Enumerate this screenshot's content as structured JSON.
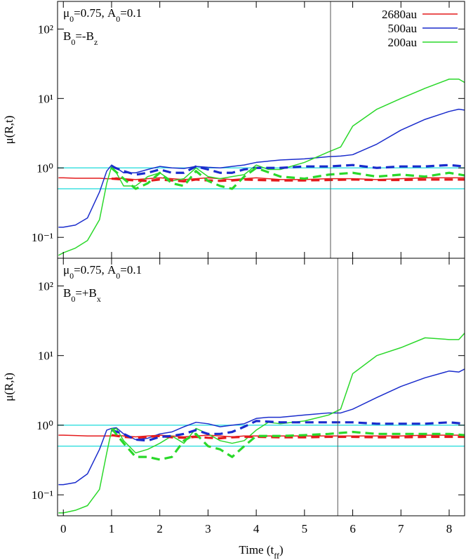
{
  "chart_data": [
    {
      "type": "line",
      "log_y": true,
      "ylabel": "μ(R,t)",
      "annotations": [
        {
          "parts": [
            "μ",
            "0",
            "=0.75, A",
            "0",
            "=0.1"
          ]
        },
        {
          "parts": [
            "B",
            "0",
            "=-B",
            "z"
          ]
        }
      ],
      "legend": "upper right",
      "show_xtick_labels": false,
      "xlim": [
        -0.12,
        8.32
      ],
      "xticks": [
        0,
        1,
        2,
        3,
        4,
        5,
        6,
        7,
        8
      ],
      "ylim": [
        0.05,
        250
      ],
      "yticks": [
        {
          "value": 0.1,
          "label": "10⁻¹"
        },
        {
          "value": 1,
          "label": "10⁰"
        },
        {
          "value": 10,
          "label": "10¹"
        },
        {
          "value": 100,
          "label": "10²"
        }
      ],
      "hlines": [
        1,
        0.5
      ],
      "hline_color": "#40e0e0",
      "vline": 5.54,
      "vline_color": "#555555",
      "series": [
        {
          "name": "2680au",
          "color": "#e41a1c",
          "dash": false,
          "x": [
            -0.1,
            0,
            0.25,
            0.5,
            0.75,
            0.9,
            1.0,
            1.1,
            1.25,
            1.5,
            1.75,
            2.0,
            2.25,
            2.5,
            2.75,
            3.0,
            3.25,
            3.5,
            3.75,
            4.0,
            4.25,
            4.5,
            5.0,
            5.5,
            5.75,
            6.0,
            6.5,
            7.0,
            7.5,
            8.0,
            8.2,
            8.32
          ],
          "values": [
            0.72,
            0.72,
            0.71,
            0.71,
            0.71,
            0.7,
            0.7,
            0.72,
            0.7,
            0.68,
            0.7,
            0.72,
            0.7,
            0.68,
            0.7,
            0.72,
            0.7,
            0.68,
            0.7,
            0.72,
            0.7,
            0.68,
            0.68,
            0.7,
            0.7,
            0.7,
            0.68,
            0.7,
            0.72,
            0.72,
            0.72,
            0.72
          ]
        },
        {
          "name": "500au",
          "color": "#1a2ccc",
          "dash": false,
          "x": [
            -0.1,
            0,
            0.25,
            0.5,
            0.75,
            0.9,
            1.0,
            1.1,
            1.25,
            1.5,
            1.75,
            2.0,
            2.25,
            2.5,
            2.75,
            3.0,
            3.25,
            3.5,
            3.75,
            4.0,
            4.25,
            4.5,
            5.0,
            5.5,
            5.75,
            6.0,
            6.5,
            7.0,
            7.5,
            8.0,
            8.2,
            8.32
          ],
          "values": [
            0.14,
            0.14,
            0.15,
            0.19,
            0.45,
            0.9,
            1.1,
            1.0,
            0.85,
            0.85,
            0.95,
            1.05,
            1.0,
            0.98,
            1.05,
            1.02,
            1.0,
            1.05,
            1.1,
            1.2,
            1.25,
            1.3,
            1.35,
            1.45,
            1.48,
            1.55,
            2.2,
            3.5,
            5.0,
            6.5,
            7.0,
            6.8
          ]
        },
        {
          "name": "200au",
          "color": "#2ad82a",
          "dash": false,
          "x": [
            -0.1,
            0,
            0.25,
            0.5,
            0.75,
            0.9,
            1.0,
            1.1,
            1.25,
            1.5,
            1.75,
            2.0,
            2.25,
            2.5,
            2.75,
            3.0,
            3.25,
            3.5,
            3.75,
            4.0,
            4.25,
            4.5,
            5.0,
            5.5,
            5.75,
            6.0,
            6.5,
            7.0,
            7.5,
            8.0,
            8.2,
            8.32
          ],
          "values": [
            0.055,
            0.06,
            0.07,
            0.09,
            0.18,
            0.6,
            1.05,
            0.85,
            0.55,
            0.55,
            0.75,
            0.85,
            0.65,
            0.7,
            1.0,
            0.75,
            0.7,
            0.75,
            0.8,
            1.1,
            0.95,
            0.95,
            1.2,
            1.7,
            2.0,
            4.0,
            7.0,
            10,
            14,
            19,
            19,
            17
          ]
        },
        {
          "color": "#e41a1c",
          "dash": true,
          "x": [
            1.0,
            1.25,
            1.5,
            1.75,
            2.0,
            2.25,
            2.5,
            2.75,
            3.0,
            3.25,
            3.5,
            3.75,
            4.0,
            4.5,
            5.0,
            5.5,
            6.0,
            6.5,
            7.0,
            7.5,
            8.0,
            8.32
          ],
          "values": [
            0.7,
            0.68,
            0.66,
            0.65,
            0.68,
            0.66,
            0.64,
            0.68,
            0.66,
            0.65,
            0.66,
            0.68,
            0.67,
            0.66,
            0.66,
            0.67,
            0.68,
            0.67,
            0.67,
            0.68,
            0.68,
            0.68
          ]
        },
        {
          "color": "#1a2ccc",
          "dash": true,
          "x": [
            1.0,
            1.25,
            1.5,
            1.75,
            2.0,
            2.25,
            2.5,
            2.75,
            3.0,
            3.25,
            3.5,
            3.75,
            4.0,
            4.5,
            5.0,
            5.5,
            6.0,
            6.5,
            7.0,
            7.5,
            8.0,
            8.32
          ],
          "values": [
            1.05,
            0.9,
            0.8,
            0.85,
            0.95,
            0.85,
            0.85,
            1.05,
            0.95,
            0.85,
            0.85,
            0.95,
            1.0,
            1.0,
            1.05,
            1.05,
            1.1,
            1.0,
            1.05,
            1.05,
            1.1,
            1.05
          ]
        },
        {
          "color": "#2ad82a",
          "dash": true,
          "x": [
            1.0,
            1.25,
            1.5,
            1.75,
            2.0,
            2.25,
            2.5,
            2.75,
            3.0,
            3.25,
            3.5,
            3.75,
            4.0,
            4.5,
            5.0,
            5.5,
            6.0,
            6.5,
            7.0,
            7.5,
            8.0,
            8.32
          ],
          "values": [
            1.0,
            0.7,
            0.5,
            0.6,
            0.85,
            0.6,
            0.55,
            0.9,
            0.65,
            0.55,
            0.5,
            0.75,
            1.0,
            0.75,
            0.7,
            0.8,
            0.85,
            0.75,
            0.8,
            0.75,
            0.85,
            0.78
          ]
        }
      ]
    },
    {
      "type": "line",
      "log_y": true,
      "ylabel": "μ(R,t)",
      "annotations": [
        {
          "parts": [
            "μ",
            "0",
            "=0.75, A",
            "0",
            "=0.1"
          ]
        },
        {
          "parts": [
            "B",
            "0",
            "=+B",
            "x"
          ]
        }
      ],
      "show_xtick_labels": true,
      "xlabel": {
        "parts": [
          "Time (t",
          "ff",
          ")"
        ]
      },
      "xlim": [
        -0.12,
        8.32
      ],
      "xticks": [
        0,
        1,
        2,
        3,
        4,
        5,
        6,
        7,
        8
      ],
      "ylim": [
        0.05,
        250
      ],
      "yticks": [
        {
          "value": 0.1,
          "label": "10⁻¹"
        },
        {
          "value": 1,
          "label": "10⁰"
        },
        {
          "value": 10,
          "label": "10¹"
        },
        {
          "value": 100,
          "label": "10²"
        }
      ],
      "hlines": [
        1,
        0.5
      ],
      "hline_color": "#40e0e0",
      "vline": 5.69,
      "vline_color": "#555555",
      "series": [
        {
          "color": "#e41a1c",
          "dash": false,
          "x": [
            -0.1,
            0,
            0.25,
            0.5,
            0.75,
            0.9,
            1.0,
            1.1,
            1.25,
            1.5,
            1.75,
            2.0,
            2.25,
            2.5,
            2.75,
            3.0,
            3.25,
            3.5,
            3.75,
            4.0,
            4.25,
            4.5,
            5.0,
            5.5,
            5.75,
            6.0,
            6.5,
            7.0,
            7.5,
            8.0,
            8.2,
            8.32
          ],
          "values": [
            0.72,
            0.72,
            0.71,
            0.7,
            0.7,
            0.7,
            0.7,
            0.72,
            0.7,
            0.68,
            0.7,
            0.72,
            0.7,
            0.68,
            0.7,
            0.72,
            0.7,
            0.68,
            0.7,
            0.7,
            0.7,
            0.7,
            0.7,
            0.7,
            0.7,
            0.7,
            0.7,
            0.7,
            0.72,
            0.72,
            0.72,
            0.72
          ]
        },
        {
          "color": "#1a2ccc",
          "dash": false,
          "x": [
            -0.1,
            0,
            0.25,
            0.5,
            0.75,
            0.9,
            1.0,
            1.1,
            1.25,
            1.5,
            1.75,
            2.0,
            2.25,
            2.5,
            2.75,
            3.0,
            3.25,
            3.5,
            3.75,
            4.0,
            4.25,
            4.5,
            5.0,
            5.5,
            5.75,
            6.0,
            6.5,
            7.0,
            7.5,
            8.0,
            8.2,
            8.32
          ],
          "values": [
            0.14,
            0.14,
            0.15,
            0.2,
            0.45,
            0.85,
            0.9,
            0.92,
            0.75,
            0.62,
            0.65,
            0.75,
            0.8,
            0.95,
            1.1,
            1.05,
            0.95,
            1.0,
            1.05,
            1.25,
            1.3,
            1.3,
            1.4,
            1.5,
            1.5,
            1.7,
            2.5,
            3.6,
            4.8,
            6.0,
            5.8,
            6.4
          ]
        },
        {
          "color": "#2ad82a",
          "dash": false,
          "x": [
            -0.1,
            0,
            0.25,
            0.5,
            0.75,
            0.9,
            1.0,
            1.1,
            1.25,
            1.5,
            1.75,
            2.0,
            2.25,
            2.5,
            2.75,
            3.0,
            3.25,
            3.5,
            3.75,
            4.0,
            4.25,
            4.5,
            5.0,
            5.5,
            5.75,
            6.0,
            6.5,
            7.0,
            7.5,
            8.0,
            8.2,
            8.32
          ],
          "values": [
            0.055,
            0.055,
            0.06,
            0.07,
            0.12,
            0.4,
            0.85,
            0.9,
            0.6,
            0.4,
            0.45,
            0.55,
            0.7,
            0.55,
            0.9,
            0.75,
            0.6,
            0.55,
            0.6,
            0.85,
            1.1,
            1.05,
            1.15,
            1.4,
            1.7,
            5.5,
            10,
            13,
            18,
            17,
            17,
            21
          ]
        },
        {
          "color": "#e41a1c",
          "dash": true,
          "x": [
            1.0,
            1.25,
            1.5,
            1.75,
            2.0,
            2.25,
            2.5,
            2.75,
            3.0,
            3.25,
            3.5,
            3.75,
            4.0,
            4.5,
            5.0,
            5.5,
            6.0,
            6.5,
            7.0,
            7.5,
            8.0,
            8.32
          ],
          "values": [
            0.72,
            0.68,
            0.66,
            0.68,
            0.7,
            0.67,
            0.66,
            0.68,
            0.66,
            0.65,
            0.67,
            0.68,
            0.68,
            0.67,
            0.67,
            0.68,
            0.68,
            0.67,
            0.67,
            0.68,
            0.68,
            0.68
          ]
        },
        {
          "color": "#1a2ccc",
          "dash": true,
          "x": [
            1.0,
            1.25,
            1.5,
            1.75,
            2.0,
            2.25,
            2.5,
            2.75,
            3.0,
            3.25,
            3.5,
            3.75,
            4.0,
            4.5,
            5.0,
            5.5,
            6.0,
            6.5,
            7.0,
            7.5,
            8.0,
            8.32
          ],
          "values": [
            0.85,
            0.75,
            0.62,
            0.6,
            0.68,
            0.7,
            0.75,
            0.85,
            0.75,
            0.75,
            0.8,
            0.95,
            1.15,
            1.1,
            1.1,
            1.1,
            1.1,
            1.05,
            1.05,
            1.05,
            1.1,
            1.05
          ]
        },
        {
          "color": "#2ad82a",
          "dash": true,
          "x": [
            1.0,
            1.25,
            1.5,
            1.75,
            2.0,
            2.25,
            2.5,
            2.75,
            3.0,
            3.25,
            3.5,
            3.75,
            4.0,
            4.5,
            5.0,
            5.5,
            6.0,
            6.5,
            7.0,
            7.5,
            8.0,
            8.32
          ],
          "values": [
            0.9,
            0.55,
            0.35,
            0.35,
            0.32,
            0.35,
            0.6,
            0.75,
            0.5,
            0.45,
            0.35,
            0.5,
            0.7,
            0.7,
            0.72,
            0.75,
            0.8,
            0.75,
            0.75,
            0.75,
            0.75,
            0.72
          ]
        }
      ]
    }
  ]
}
